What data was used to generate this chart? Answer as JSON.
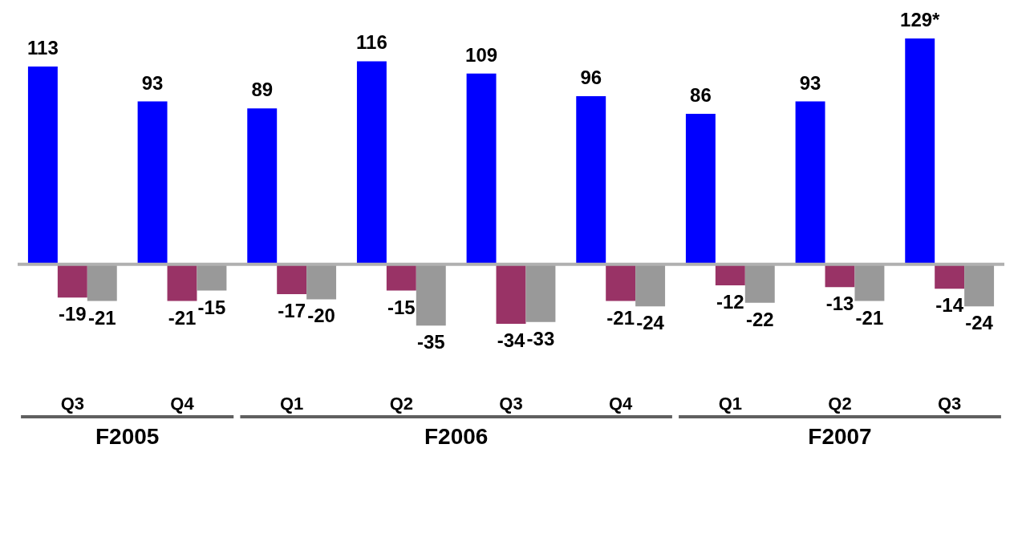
{
  "chart_data": {
    "type": "bar",
    "categories": [
      "Q3",
      "Q4",
      "Q1",
      "Q2",
      "Q3",
      "Q4",
      "Q1",
      "Q2",
      "Q3"
    ],
    "series": [
      {
        "color": "#0000ff",
        "values": [
          113,
          93,
          89,
          116,
          109,
          96,
          86,
          93,
          129
        ],
        "value_labels": [
          "113",
          "93",
          "89",
          "116",
          "109",
          "96",
          "86",
          "93",
          "129*"
        ]
      },
      {
        "color": "#993366",
        "values": [
          -19,
          -21,
          -17,
          -15,
          -34,
          -21,
          -12,
          -13,
          -14
        ]
      },
      {
        "color": "#999999",
        "values": [
          -21,
          -15,
          -20,
          -35,
          -33,
          -24,
          -22,
          -21,
          -24
        ]
      }
    ],
    "data_labels": true,
    "annotations": [
      "F2005",
      "F2006",
      "F2007"
    ]
  }
}
